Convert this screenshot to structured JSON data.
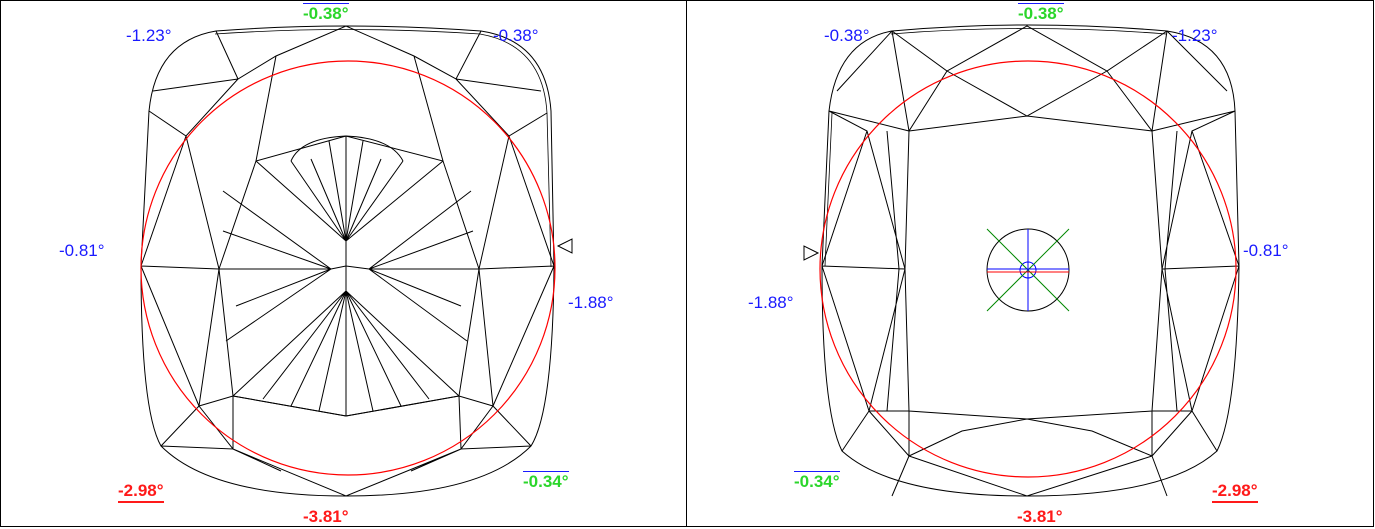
{
  "left": {
    "labels": {
      "top_left": "-1.23°",
      "top_center": "-0.38°",
      "top_right": "-0.38°",
      "left_mid": "-0.81°",
      "right_mid": "-1.88°",
      "bottom_left": "-2.98°",
      "bottom_right": "-0.34°",
      "bottom_center": "-3.81°"
    }
  },
  "right": {
    "labels": {
      "top_left": "-0.38°",
      "top_center": "-0.38°",
      "top_right": "-1.23°",
      "left_mid": "-1.88°",
      "right_mid": "-0.81°",
      "bottom_left": "-0.34°",
      "bottom_right": "-2.98°",
      "bottom_center": "-3.81°"
    }
  },
  "colors": {
    "blue_label": "#1a1aff",
    "green_label": "#2bd62b",
    "red_label": "#ff1a1a",
    "outline": "#000000",
    "circle": "#ff0000",
    "crosshair_green": "#008800",
    "crosshair_blue": "#0000ff"
  }
}
